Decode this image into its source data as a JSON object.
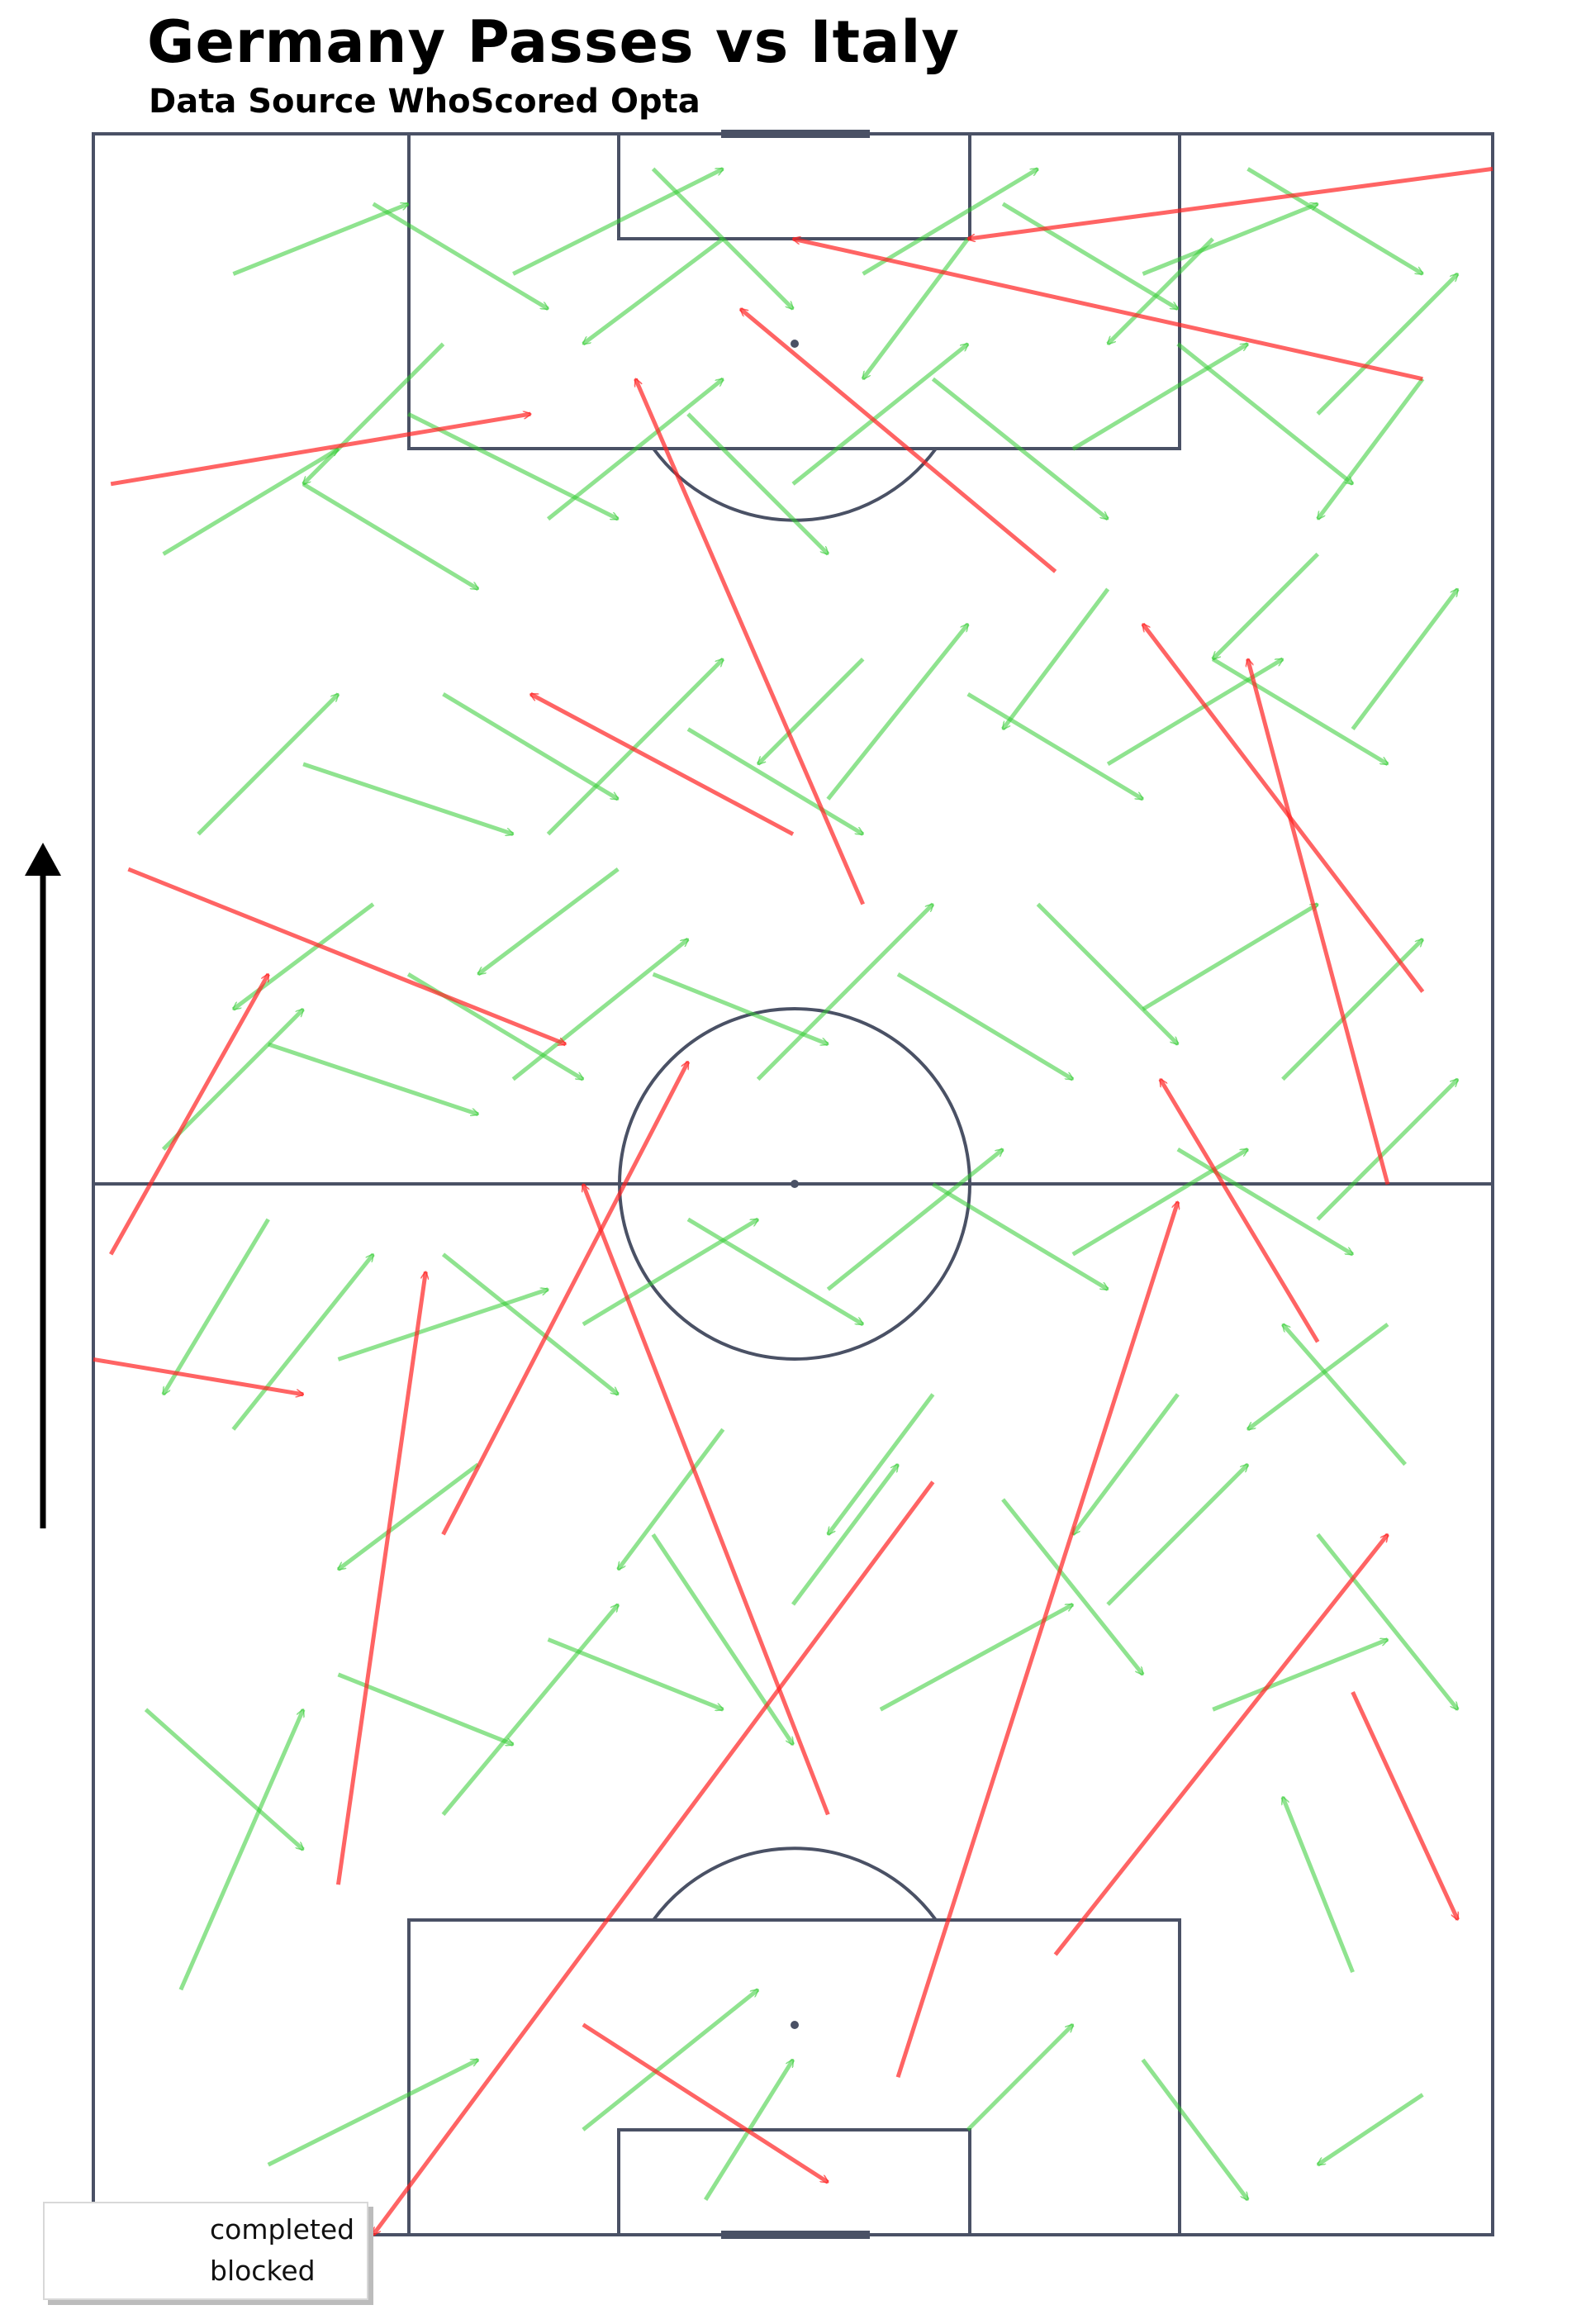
{
  "title": "Germany Passes vs Italy",
  "subtitle": "Data Source  WhoScored Opta",
  "colors": {
    "completed": "#33cc33",
    "blocked": "#ff2222",
    "pitch_lines": "#4a5165",
    "direction_arrow": "#000000"
  },
  "legend": [
    {
      "label": "completed",
      "color": "#33cc33"
    },
    {
      "label": "blocked",
      "color": "#ff2222"
    }
  ],
  "chart_data": {
    "type": "pass map",
    "pitch": {
      "length": 120,
      "width": 80,
      "orientation": "vertical",
      "attack_direction": "up"
    },
    "series": [
      {
        "name": "completed",
        "passes": [
          {
            "x": 5,
            "y": 14,
            "end_x": 12,
            "end_y": 30
          },
          {
            "x": 10,
            "y": 4,
            "end_x": 22,
            "end_y": 10
          },
          {
            "x": 28,
            "y": 6,
            "end_x": 38,
            "end_y": 14
          },
          {
            "x": 35,
            "y": 2,
            "end_x": 40,
            "end_y": 10
          },
          {
            "x": 50,
            "y": 6,
            "end_x": 56,
            "end_y": 12
          },
          {
            "x": 60,
            "y": 10,
            "end_x": 66,
            "end_y": 2
          },
          {
            "x": 72,
            "y": 15,
            "end_x": 68,
            "end_y": 25
          },
          {
            "x": 76,
            "y": 8,
            "end_x": 70,
            "end_y": 4
          },
          {
            "x": 3,
            "y": 30,
            "end_x": 12,
            "end_y": 22
          },
          {
            "x": 14,
            "y": 32,
            "end_x": 24,
            "end_y": 28
          },
          {
            "x": 20,
            "y": 24,
            "end_x": 30,
            "end_y": 36
          },
          {
            "x": 26,
            "y": 34,
            "end_x": 36,
            "end_y": 30
          },
          {
            "x": 32,
            "y": 40,
            "end_x": 40,
            "end_y": 28
          },
          {
            "x": 40,
            "y": 36,
            "end_x": 46,
            "end_y": 44
          },
          {
            "x": 45,
            "y": 30,
            "end_x": 56,
            "end_y": 36
          },
          {
            "x": 52,
            "y": 42,
            "end_x": 60,
            "end_y": 32
          },
          {
            "x": 58,
            "y": 36,
            "end_x": 66,
            "end_y": 44
          },
          {
            "x": 64,
            "y": 30,
            "end_x": 74,
            "end_y": 34
          },
          {
            "x": 70,
            "y": 40,
            "end_x": 78,
            "end_y": 30
          },
          {
            "x": 75,
            "y": 44,
            "end_x": 68,
            "end_y": 52
          },
          {
            "x": 8,
            "y": 46,
            "end_x": 16,
            "end_y": 56
          },
          {
            "x": 14,
            "y": 50,
            "end_x": 26,
            "end_y": 54
          },
          {
            "x": 20,
            "y": 56,
            "end_x": 30,
            "end_y": 48
          },
          {
            "x": 28,
            "y": 52,
            "end_x": 38,
            "end_y": 58
          },
          {
            "x": 34,
            "y": 58,
            "end_x": 44,
            "end_y": 52
          },
          {
            "x": 42,
            "y": 54,
            "end_x": 52,
            "end_y": 62
          },
          {
            "x": 48,
            "y": 60,
            "end_x": 58,
            "end_y": 54
          },
          {
            "x": 56,
            "y": 56,
            "end_x": 66,
            "end_y": 62
          },
          {
            "x": 62,
            "y": 62,
            "end_x": 72,
            "end_y": 56
          },
          {
            "x": 70,
            "y": 58,
            "end_x": 78,
            "end_y": 66
          },
          {
            "x": 4,
            "y": 62,
            "end_x": 12,
            "end_y": 70
          },
          {
            "x": 10,
            "y": 68,
            "end_x": 22,
            "end_y": 64
          },
          {
            "x": 18,
            "y": 72,
            "end_x": 28,
            "end_y": 66
          },
          {
            "x": 24,
            "y": 66,
            "end_x": 34,
            "end_y": 74
          },
          {
            "x": 32,
            "y": 72,
            "end_x": 42,
            "end_y": 68
          },
          {
            "x": 38,
            "y": 66,
            "end_x": 48,
            "end_y": 76
          },
          {
            "x": 46,
            "y": 72,
            "end_x": 56,
            "end_y": 66
          },
          {
            "x": 54,
            "y": 76,
            "end_x": 62,
            "end_y": 68
          },
          {
            "x": 60,
            "y": 70,
            "end_x": 70,
            "end_y": 76
          },
          {
            "x": 68,
            "y": 66,
            "end_x": 76,
            "end_y": 74
          },
          {
            "x": 6,
            "y": 80,
            "end_x": 14,
            "end_y": 88
          },
          {
            "x": 12,
            "y": 84,
            "end_x": 24,
            "end_y": 80
          },
          {
            "x": 20,
            "y": 88,
            "end_x": 30,
            "end_y": 82
          },
          {
            "x": 26,
            "y": 80,
            "end_x": 36,
            "end_y": 90
          },
          {
            "x": 34,
            "y": 86,
            "end_x": 44,
            "end_y": 80
          },
          {
            "x": 42,
            "y": 82,
            "end_x": 50,
            "end_y": 92
          },
          {
            "x": 50,
            "y": 88,
            "end_x": 60,
            "end_y": 82
          },
          {
            "x": 58,
            "y": 84,
            "end_x": 68,
            "end_y": 90
          },
          {
            "x": 64,
            "y": 90,
            "end_x": 74,
            "end_y": 84
          },
          {
            "x": 72,
            "y": 86,
            "end_x": 78,
            "end_y": 94
          },
          {
            "x": 4,
            "y": 96,
            "end_x": 14,
            "end_y": 102
          },
          {
            "x": 12,
            "y": 100,
            "end_x": 22,
            "end_y": 94
          },
          {
            "x": 18,
            "y": 104,
            "end_x": 30,
            "end_y": 98
          },
          {
            "x": 26,
            "y": 98,
            "end_x": 36,
            "end_y": 106
          },
          {
            "x": 34,
            "y": 104,
            "end_x": 42,
            "end_y": 96
          },
          {
            "x": 40,
            "y": 100,
            "end_x": 50,
            "end_y": 108
          },
          {
            "x": 48,
            "y": 106,
            "end_x": 58,
            "end_y": 98
          },
          {
            "x": 56,
            "y": 102,
            "end_x": 66,
            "end_y": 108
          },
          {
            "x": 62,
            "y": 108,
            "end_x": 72,
            "end_y": 100
          },
          {
            "x": 70,
            "y": 104,
            "end_x": 78,
            "end_y": 112
          },
          {
            "x": 8,
            "y": 112,
            "end_x": 18,
            "end_y": 116
          },
          {
            "x": 16,
            "y": 116,
            "end_x": 26,
            "end_y": 110
          },
          {
            "x": 24,
            "y": 112,
            "end_x": 36,
            "end_y": 118
          },
          {
            "x": 32,
            "y": 118,
            "end_x": 40,
            "end_y": 110
          },
          {
            "x": 44,
            "y": 112,
            "end_x": 54,
            "end_y": 118
          },
          {
            "x": 52,
            "y": 116,
            "end_x": 62,
            "end_y": 110
          },
          {
            "x": 60,
            "y": 112,
            "end_x": 70,
            "end_y": 116
          },
          {
            "x": 66,
            "y": 118,
            "end_x": 76,
            "end_y": 112
          },
          {
            "x": 10,
            "y": 58,
            "end_x": 4,
            "end_y": 48
          },
          {
            "x": 22,
            "y": 44,
            "end_x": 14,
            "end_y": 38
          },
          {
            "x": 36,
            "y": 46,
            "end_x": 30,
            "end_y": 38
          },
          {
            "x": 48,
            "y": 48,
            "end_x": 42,
            "end_y": 40
          },
          {
            "x": 62,
            "y": 48,
            "end_x": 56,
            "end_y": 40
          },
          {
            "x": 74,
            "y": 52,
            "end_x": 66,
            "end_y": 46
          },
          {
            "x": 16,
            "y": 76,
            "end_x": 8,
            "end_y": 70
          },
          {
            "x": 30,
            "y": 78,
            "end_x": 22,
            "end_y": 72
          },
          {
            "x": 44,
            "y": 90,
            "end_x": 38,
            "end_y": 84
          },
          {
            "x": 58,
            "y": 94,
            "end_x": 52,
            "end_y": 86
          },
          {
            "x": 70,
            "y": 96,
            "end_x": 64,
            "end_y": 90
          },
          {
            "x": 20,
            "y": 108,
            "end_x": 12,
            "end_y": 100
          },
          {
            "x": 36,
            "y": 114,
            "end_x": 28,
            "end_y": 108
          },
          {
            "x": 50,
            "y": 114,
            "end_x": 44,
            "end_y": 106
          },
          {
            "x": 64,
            "y": 114,
            "end_x": 58,
            "end_y": 108
          },
          {
            "x": 76,
            "y": 106,
            "end_x": 70,
            "end_y": 98
          }
        ]
      },
      {
        "name": "blocked",
        "passes": [
          {
            "x": 1,
            "y": 100,
            "end_x": 25,
            "end_y": 104
          },
          {
            "x": 80,
            "y": 118,
            "end_x": 50,
            "end_y": 114
          },
          {
            "x": 76,
            "y": 106,
            "end_x": 40,
            "end_y": 114
          },
          {
            "x": 55,
            "y": 95,
            "end_x": 37,
            "end_y": 110
          },
          {
            "x": 76,
            "y": 71,
            "end_x": 60,
            "end_y": 92
          },
          {
            "x": 2,
            "y": 78,
            "end_x": 27,
            "end_y": 68
          },
          {
            "x": 0,
            "y": 50,
            "end_x": 12,
            "end_y": 48
          },
          {
            "x": 1,
            "y": 56,
            "end_x": 10,
            "end_y": 72
          },
          {
            "x": 14,
            "y": 20,
            "end_x": 19,
            "end_y": 55
          },
          {
            "x": 46,
            "y": 9,
            "end_x": 62,
            "end_y": 59
          },
          {
            "x": 40,
            "y": 80,
            "end_x": 25,
            "end_y": 88
          },
          {
            "x": 44,
            "y": 76,
            "end_x": 31,
            "end_y": 106
          },
          {
            "x": 74,
            "y": 60,
            "end_x": 66,
            "end_y": 90
          },
          {
            "x": 48,
            "y": 43,
            "end_x": 16,
            "end_y": 0
          },
          {
            "x": 28,
            "y": 12,
            "end_x": 42,
            "end_y": 3
          },
          {
            "x": 20,
            "y": 40,
            "end_x": 34,
            "end_y": 67
          },
          {
            "x": 42,
            "y": 24,
            "end_x": 28,
            "end_y": 60
          },
          {
            "x": 55,
            "y": 16,
            "end_x": 74,
            "end_y": 40
          },
          {
            "x": 70,
            "y": 51,
            "end_x": 61,
            "end_y": 66
          },
          {
            "x": 72,
            "y": 31,
            "end_x": 78,
            "end_y": 18
          }
        ]
      }
    ]
  }
}
